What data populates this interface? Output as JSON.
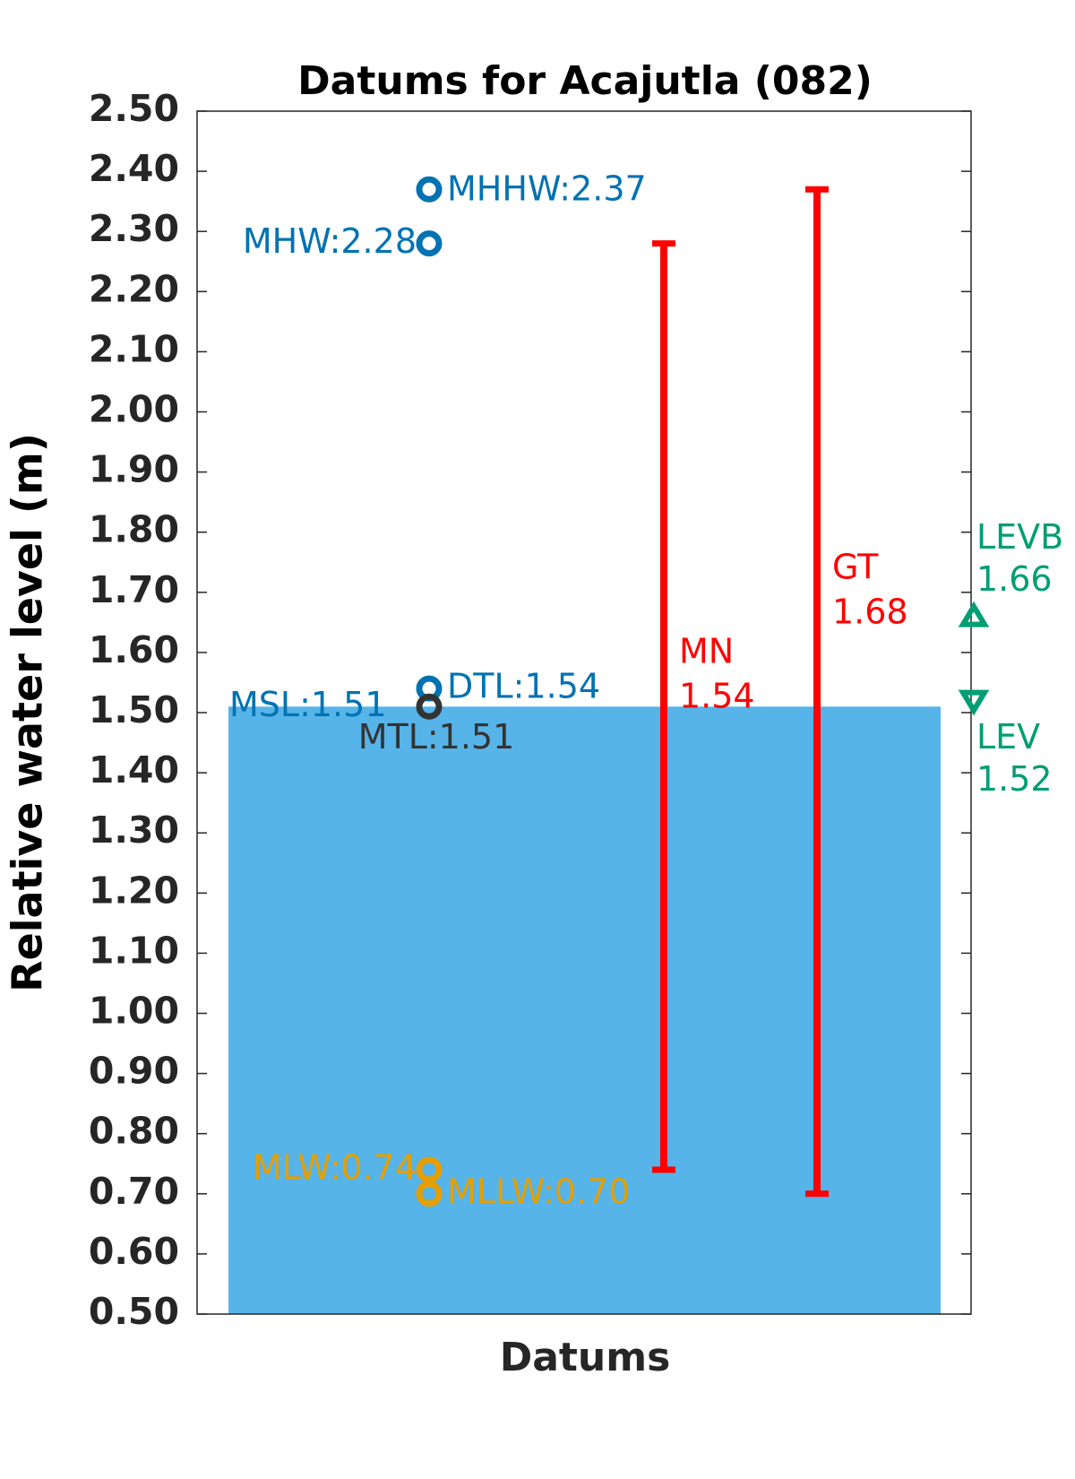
{
  "chart_data": {
    "type": "datums",
    "title": "Datums for Acajutla (082)",
    "xlabel": "Datums",
    "ylabel": "Relative water level (m)",
    "ylim": [
      0.5,
      2.5
    ],
    "yticks": [
      {
        "value": 0.5,
        "label": "0.50"
      },
      {
        "value": 0.6,
        "label": "0.60"
      },
      {
        "value": 0.7,
        "label": "0.70"
      },
      {
        "value": 0.8,
        "label": "0.80"
      },
      {
        "value": 0.9,
        "label": "0.90"
      },
      {
        "value": 1.0,
        "label": "1.00"
      },
      {
        "value": 1.1,
        "label": "1.10"
      },
      {
        "value": 1.2,
        "label": "1.20"
      },
      {
        "value": 1.3,
        "label": "1.30"
      },
      {
        "value": 1.4,
        "label": "1.40"
      },
      {
        "value": 1.5,
        "label": "1.50"
      },
      {
        "value": 1.6,
        "label": "1.60"
      },
      {
        "value": 1.7,
        "label": "1.70"
      },
      {
        "value": 1.8,
        "label": "1.80"
      },
      {
        "value": 1.9,
        "label": "1.90"
      },
      {
        "value": 2.0,
        "label": "2.00"
      },
      {
        "value": 2.1,
        "label": "2.10"
      },
      {
        "value": 2.2,
        "label": "2.20"
      },
      {
        "value": 2.3,
        "label": "2.30"
      },
      {
        "value": 2.4,
        "label": "2.40"
      },
      {
        "value": 2.5,
        "label": "2.50"
      }
    ],
    "bar": {
      "value": 1.51,
      "value_label": "MSL:1.51",
      "color": "#56b4e9",
      "label_color": "#0072b2"
    },
    "points": [
      {
        "value": 2.37,
        "value_label": "MHHW:2.37",
        "color": "#0072b2"
      },
      {
        "value": 2.28,
        "value_label": "MHW:2.28",
        "color": "#0072b2"
      },
      {
        "value": 1.54,
        "value_label": "DTL:1.54",
        "color": "#0072b2"
      },
      {
        "value": 1.51,
        "value_label": "MTL:1.51",
        "color": "#333333"
      },
      {
        "value": 0.74,
        "value_label": "MLW:0.74",
        "color": "#e69f00"
      },
      {
        "value": 0.7,
        "value_label": "MLLW:0.70",
        "color": "#e69f00"
      }
    ],
    "ranges": [
      {
        "name": "MN",
        "value": 1.54,
        "low": 0.74,
        "high": 2.28,
        "color": "#ff0000"
      },
      {
        "name": "GT",
        "value": 1.68,
        "low": 0.7,
        "high": 2.37,
        "color": "#ff0000"
      }
    ],
    "levels": [
      {
        "name": "LEVB",
        "value": 1.66,
        "marker": "up",
        "color": "#009e73"
      },
      {
        "name": "LEV",
        "value": 1.52,
        "marker": "down",
        "color": "#009e73"
      }
    ]
  }
}
